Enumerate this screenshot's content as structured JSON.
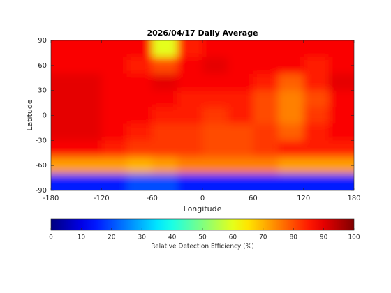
{
  "chart_data": {
    "type": "heatmap",
    "title": "2026/04/17 Daily Average",
    "x_label": "Longitude",
    "y_label": "Latitude",
    "colorbar_label": "Relative Detection Efficiency (%)",
    "colormap": "jet",
    "xlim": [
      -180,
      180
    ],
    "ylim": [
      -90,
      90
    ],
    "xticks": [
      -180,
      -120,
      -60,
      0,
      60,
      120,
      180
    ],
    "yticks": [
      -90,
      -60,
      -30,
      0,
      30,
      60,
      90
    ],
    "clim": [
      0,
      100
    ],
    "cticks": [
      0,
      10,
      20,
      30,
      40,
      50,
      60,
      70,
      80,
      90,
      100
    ],
    "xbins": [
      -180,
      -150,
      -120,
      -90,
      -60,
      -30,
      0,
      30,
      60,
      90,
      120,
      150,
      180
    ],
    "ybins": [
      90,
      70,
      50,
      30,
      10,
      -10,
      -30,
      -50,
      -70,
      -90
    ],
    "z": [
      [
        88,
        88,
        88,
        88,
        60,
        85,
        88,
        88,
        88,
        88,
        88,
        88
      ],
      [
        88,
        88,
        88,
        85,
        80,
        88,
        90,
        88,
        88,
        88,
        85,
        88
      ],
      [
        90,
        90,
        88,
        88,
        90,
        88,
        88,
        88,
        85,
        78,
        85,
        90
      ],
      [
        90,
        90,
        88,
        88,
        88,
        85,
        85,
        85,
        80,
        75,
        80,
        88
      ],
      [
        90,
        90,
        88,
        88,
        85,
        85,
        82,
        85,
        80,
        75,
        82,
        88
      ],
      [
        90,
        90,
        88,
        85,
        82,
        82,
        80,
        80,
        82,
        78,
        85,
        88
      ],
      [
        88,
        88,
        85,
        82,
        82,
        82,
        80,
        80,
        82,
        85,
        85,
        85
      ],
      [
        72,
        72,
        72,
        70,
        72,
        75,
        75,
        75,
        75,
        72,
        72,
        72
      ],
      [
        15,
        15,
        15,
        20,
        20,
        15,
        15,
        15,
        15,
        15,
        15,
        15
      ]
    ]
  }
}
